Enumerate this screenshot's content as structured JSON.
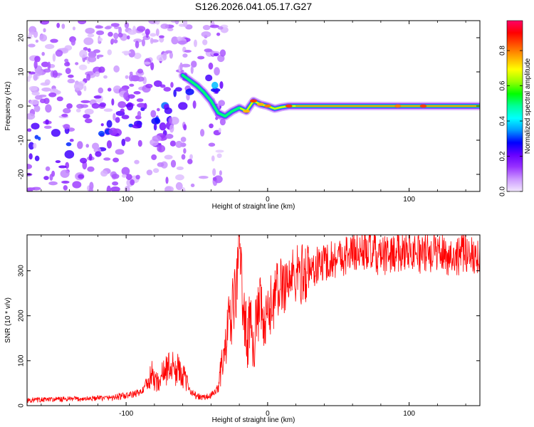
{
  "chart_data": [
    {
      "type": "heatmap",
      "title": "S126.2026.041.05.17.G27",
      "xlabel": "Height of straight line (km)",
      "ylabel": "Frequency (Hz)",
      "xlim": [
        -170,
        150
      ],
      "ylim": [
        -25,
        25
      ],
      "xticks": [
        -100,
        0,
        100
      ],
      "yticks": [
        -20,
        -10,
        0,
        10,
        20
      ],
      "colorbar": {
        "label": "Normalized spectral amplitude",
        "range": [
          0,
          0.97
        ],
        "ticks": [
          0.0,
          0.2,
          0.4,
          0.6,
          0.8
        ],
        "colormap": [
          "#f2e6ff",
          "#cc99ff",
          "#9933ff",
          "#6600ff",
          "#0000ff",
          "#0099ff",
          "#00ffff",
          "#00ff99",
          "#00ff00",
          "#99ff00",
          "#ffff00",
          "#ffaa00",
          "#ff5500",
          "#ff0000",
          "#ff0066"
        ]
      },
      "ridge": [
        {
          "x": -60,
          "y": 9.0,
          "a": 0.45
        },
        {
          "x": -50,
          "y": 6.0,
          "a": 0.35
        },
        {
          "x": -45,
          "y": 4.0,
          "a": 0.55
        },
        {
          "x": -40,
          "y": 1.5,
          "a": 0.45
        },
        {
          "x": -35,
          "y": -2.0,
          "a": 0.5
        },
        {
          "x": -30,
          "y": -3.0,
          "a": 0.55
        },
        {
          "x": -25,
          "y": -1.5,
          "a": 0.6
        },
        {
          "x": -20,
          "y": -0.5,
          "a": 0.65
        },
        {
          "x": -15,
          "y": -1.5,
          "a": 0.75
        },
        {
          "x": -10,
          "y": 1.5,
          "a": 0.85
        },
        {
          "x": -5,
          "y": 0.5,
          "a": 0.75
        },
        {
          "x": 0,
          "y": 0.0,
          "a": 0.8
        },
        {
          "x": 5,
          "y": -0.8,
          "a": 0.7
        },
        {
          "x": 10,
          "y": -0.3,
          "a": 0.65
        },
        {
          "x": 15,
          "y": 0.0,
          "a": 0.85
        },
        {
          "x": 20,
          "y": 0.0,
          "a": 0.7
        },
        {
          "x": 40,
          "y": 0.0,
          "a": 0.65
        },
        {
          "x": 60,
          "y": 0.0,
          "a": 0.65
        },
        {
          "x": 80,
          "y": 0.0,
          "a": 0.65
        },
        {
          "x": 92,
          "y": 0.0,
          "a": 0.8
        },
        {
          "x": 110,
          "y": 0.0,
          "a": 0.85
        },
        {
          "x": 130,
          "y": 0.0,
          "a": 0.65
        },
        {
          "x": 150,
          "y": 0.0,
          "a": 0.6
        }
      ]
    },
    {
      "type": "line",
      "xlabel": "Height of straight line (km)",
      "ylabel": "SNR (10 * v/v)",
      "xlim": [
        -170,
        150
      ],
      "ylim": [
        0,
        380
      ],
      "xticks": [
        -100,
        0,
        100
      ],
      "yticks": [
        0,
        100,
        200,
        300
      ],
      "line_color": "#ff0000",
      "series": [
        {
          "name": "SNR",
          "x": [
            -170,
            -150,
            -130,
            -110,
            -100,
            -95,
            -90,
            -85,
            -82,
            -78,
            -75,
            -72,
            -68,
            -65,
            -62,
            -58,
            -55,
            -50,
            -45,
            -40,
            -36,
            -33,
            -30,
            -28,
            -26,
            -24,
            -22,
            -21,
            -20,
            -18,
            -16,
            -14,
            -12,
            -10,
            -8,
            -5,
            -2,
            0,
            3,
            6,
            10,
            15,
            20,
            25,
            30,
            40,
            50,
            60,
            70,
            80,
            90,
            100,
            110,
            120,
            130,
            140,
            150
          ],
          "y": [
            12,
            14,
            15,
            18,
            22,
            25,
            30,
            45,
            70,
            50,
            65,
            80,
            90,
            75,
            85,
            55,
            35,
            20,
            18,
            22,
            35,
            80,
            120,
            170,
            190,
            230,
            260,
            330,
            380,
            250,
            180,
            150,
            200,
            140,
            180,
            220,
            160,
            200,
            230,
            250,
            270,
            280,
            290,
            295,
            300,
            320,
            330,
            340,
            345,
            330,
            340,
            350,
            335,
            345,
            330,
            340,
            335
          ]
        }
      ]
    }
  ]
}
